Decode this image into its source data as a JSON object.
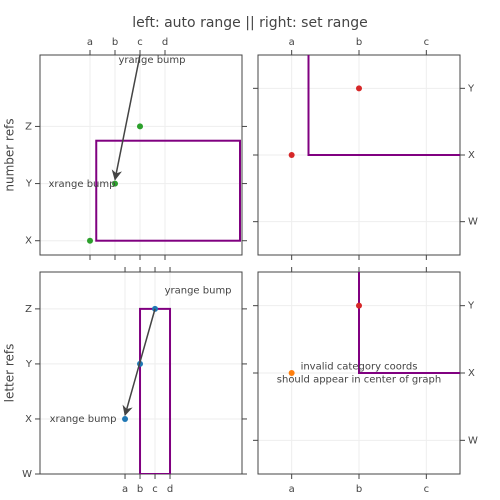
{
  "title": "left: auto range || right: set range",
  "chart_data": [
    {
      "type": "scatter",
      "ylabel": "number refs",
      "xcategories": [
        "a",
        "b",
        "c",
        "d"
      ],
      "ycategories": [
        "X",
        "Y",
        "Z"
      ],
      "xlim": [
        -2,
        6.08
      ],
      "ylim": [
        -0.25,
        3.25
      ],
      "xside": "top",
      "yside": "left",
      "series": [
        {
          "color": "#2ca02c",
          "x": [
            "a",
            "b",
            "c"
          ],
          "y": [
            "X",
            "Y",
            "Z"
          ]
        }
      ],
      "shape": {
        "color": "#800080",
        "x0": 0.25,
        "x1": 6,
        "y0": 0,
        "y1": 1.75
      },
      "annotations": [
        {
          "text": [
            "yrange bump"
          ],
          "x": 2.48,
          "y": 3.16
        },
        {
          "text": [
            "xrange bump"
          ],
          "x": -0.32,
          "y": 0.99
        }
      ],
      "arrows": [
        {
          "x0": 2,
          "y0": 3.25,
          "x1": 1,
          "y1": 1.07
        }
      ]
    },
    {
      "type": "scatter",
      "xcategories": [
        "a",
        "b",
        "c"
      ],
      "ycategories": [
        "W",
        "X",
        "Y"
      ],
      "xlim": [
        -0.5,
        2.5
      ],
      "ylim": [
        -0.5,
        2.5
      ],
      "xside": "top",
      "yside": "right",
      "series": [
        {
          "color": "#d62728",
          "x": [
            "a",
            "b"
          ],
          "y": [
            "X",
            "Y"
          ]
        }
      ],
      "shape": {
        "color": "#800080",
        "x0": 0.25,
        "x1": 3,
        "y0": 1,
        "y1": 3
      },
      "annotations": [],
      "arrows": []
    },
    {
      "type": "scatter",
      "ylabel": "letter refs",
      "xcategories": [
        "a",
        "b",
        "c",
        "d"
      ],
      "ycategories": [
        "W",
        "X",
        "Y",
        "Z"
      ],
      "xlim": [
        -5.67,
        7.8
      ],
      "ylim": [
        0,
        3.67
      ],
      "xside": "bottom",
      "yside": "left",
      "series": [
        {
          "color": "#1f77b4",
          "x": [
            "a",
            "b",
            "c"
          ],
          "y": [
            "X",
            "Y",
            "Z"
          ]
        }
      ],
      "shape": {
        "color": "#800080",
        "x0": 1,
        "x1": 3,
        "y0": 0,
        "y1": 3
      },
      "annotations": [
        {
          "text": [
            "yrange bump"
          ],
          "x": 4.87,
          "y": 3.33
        },
        {
          "text": [
            "xrange bump"
          ],
          "x": -2.8,
          "y": 1
        }
      ],
      "arrows": [
        {
          "x0": 2,
          "y0": 3,
          "x1": 0,
          "y1": 1.07
        }
      ]
    },
    {
      "type": "scatter",
      "xcategories": [
        "a",
        "b",
        "c"
      ],
      "ycategories": [
        "W",
        "X",
        "Y"
      ],
      "xlim": [
        -0.5,
        2.5
      ],
      "ylim": [
        -0.5,
        2.5
      ],
      "xside": "bottom",
      "yside": "right",
      "series": [
        {
          "color": "#ff7f0e",
          "x": [
            "a"
          ],
          "y": [
            "X"
          ]
        },
        {
          "color": "#d62728",
          "x": [
            "b"
          ],
          "y": [
            "Y"
          ]
        }
      ],
      "shape": {
        "color": "#800080",
        "x0": 1,
        "x1": 3,
        "y0": 1,
        "y1": 3
      },
      "annotations": [
        {
          "text": [
            "invalid category coords",
            "should appear in center of graph"
          ],
          "x": 1,
          "y": 1
        }
      ],
      "arrows": []
    }
  ]
}
